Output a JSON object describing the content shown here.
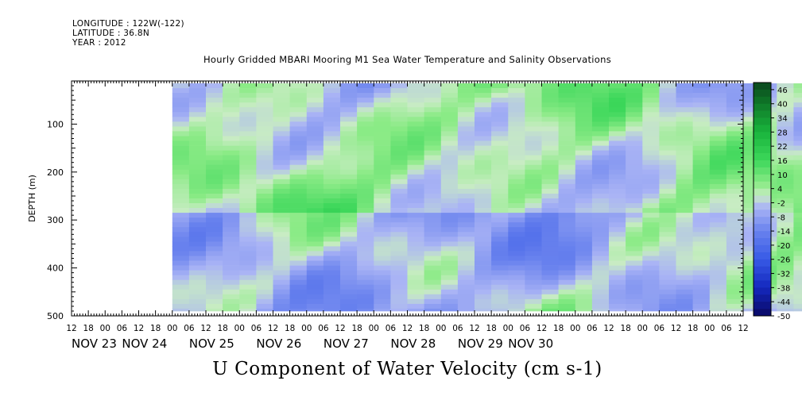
{
  "header": {
    "longitude": "LONGITUDE : 122W(-122)",
    "latitude": "LATITUDE : 36.8N",
    "year": "YEAR : 2012"
  },
  "chart_data": {
    "type": "heatmap",
    "title": "Hourly Gridded MBARI Mooring M1 Sea Water Temperature and Salinity Observations",
    "variable_title": "U Component of Water Velocity (cm s-1)",
    "ylabel": "DEPTH (m)",
    "y_axis": {
      "ylim": [
        500,
        10
      ],
      "inverted": true,
      "tick_values": [
        100,
        200,
        300,
        400,
        500
      ],
      "tick_labels": [
        "100",
        "200",
        "300",
        "400",
        "500"
      ]
    },
    "x_axis": {
      "hour_tick_labels": [
        "12",
        "18",
        "00",
        "06",
        "12",
        "18",
        "00",
        "06",
        "12",
        "18",
        "00",
        "06",
        "12",
        "18",
        "00",
        "06",
        "12",
        "18",
        "00",
        "06",
        "12",
        "18",
        "00",
        "06",
        "12",
        "18",
        "00",
        "06",
        "12",
        "18",
        "00",
        "06",
        "12",
        "18",
        "00",
        "06",
        "12",
        "18",
        "00",
        "06",
        "12"
      ],
      "date_labels": [
        "NOV 23",
        "NOV 24",
        "NOV 25",
        "NOV 26",
        "NOV 27",
        "NOV 28",
        "NOV 29",
        "NOV 30"
      ],
      "date_hours": [
        0,
        18,
        42,
        66,
        90,
        114,
        138,
        156
      ]
    },
    "data_hour_start": 6,
    "data_hour_end": 168,
    "data_depth_range": [
      15,
      490
    ],
    "colorbar": {
      "tick_labels": [
        "46",
        "40",
        "34",
        "28",
        "22",
        "16",
        "10",
        "4",
        "-2",
        "-8",
        "-14",
        "-20",
        "-26",
        "-32",
        "-38",
        "-44",
        "-50"
      ],
      "levels": [
        -50,
        -47,
        -44,
        -41,
        -38,
        -35,
        -32,
        -29,
        -26,
        -23,
        -20,
        -17,
        -14,
        -11,
        -8,
        -5,
        -2,
        1,
        4,
        7,
        10,
        13,
        16,
        19,
        22,
        25,
        28,
        31,
        34,
        37,
        40,
        43,
        46,
        49
      ]
    },
    "colors": {
      "negative_dark": "#0b0b6e",
      "negative_mid": "#3b5fe0",
      "negative_light": "#9aa8f0",
      "near_zero": "#c4ecc0",
      "positive_light": "#7ee87f",
      "positive_mid": "#1fc84a",
      "positive_dark": "#0b4a1f"
    }
  }
}
